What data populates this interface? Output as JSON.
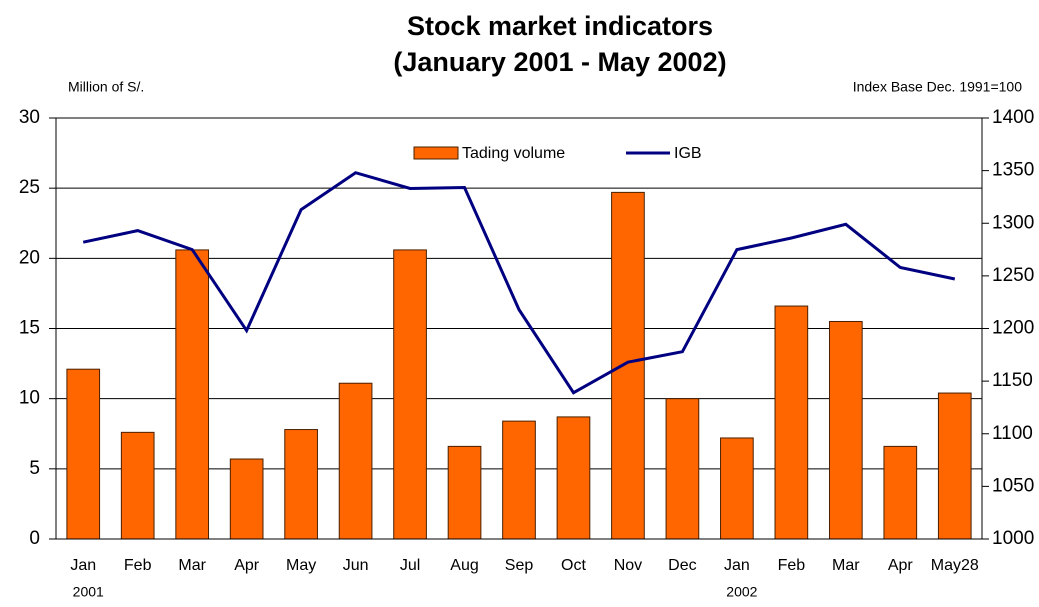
{
  "chart_data": {
    "type": "bar_line",
    "title": [
      "Stock market indicators",
      "(January 2001 - May 2002)"
    ],
    "y_label": "Million of S/.",
    "y2_label": "Index Base Dec. 1991=100",
    "categories": [
      "Jan",
      "Feb",
      "Mar",
      "Apr",
      "May",
      "Jun",
      "Jul",
      "Aug",
      "Sep",
      "Oct",
      "Nov",
      "Dec",
      "Jan",
      "Feb",
      "Mar",
      "Apr",
      "May28"
    ],
    "year_labels": [
      "2001",
      null,
      null,
      null,
      null,
      null,
      null,
      null,
      null,
      null,
      null,
      null,
      "2002",
      null,
      null,
      null,
      null
    ],
    "series": [
      {
        "name": "Tading volume",
        "type": "bar",
        "color": "#ff6600",
        "values": [
          12.1,
          7.6,
          20.6,
          5.7,
          7.8,
          11.1,
          20.6,
          6.6,
          8.4,
          8.7,
          24.7,
          10.0,
          7.2,
          16.6,
          15.5,
          6.6,
          10.4
        ]
      },
      {
        "name": "IGB",
        "type": "line",
        "axis": "y2",
        "color": "#000080",
        "values": [
          1282,
          1293,
          1275,
          1198,
          1313,
          1348,
          1333,
          1334,
          1218,
          1139,
          1168,
          1178,
          1275,
          1286,
          1299,
          1258,
          1247
        ]
      }
    ],
    "ylim": [
      0,
      30
    ],
    "yticks": [
      0,
      5,
      10,
      15,
      20,
      25,
      30
    ],
    "y2lim": [
      1000,
      1400
    ],
    "y2ticks": [
      1000,
      1050,
      1100,
      1150,
      1200,
      1250,
      1300,
      1350,
      1400
    ],
    "grid": true,
    "legend": "top"
  }
}
